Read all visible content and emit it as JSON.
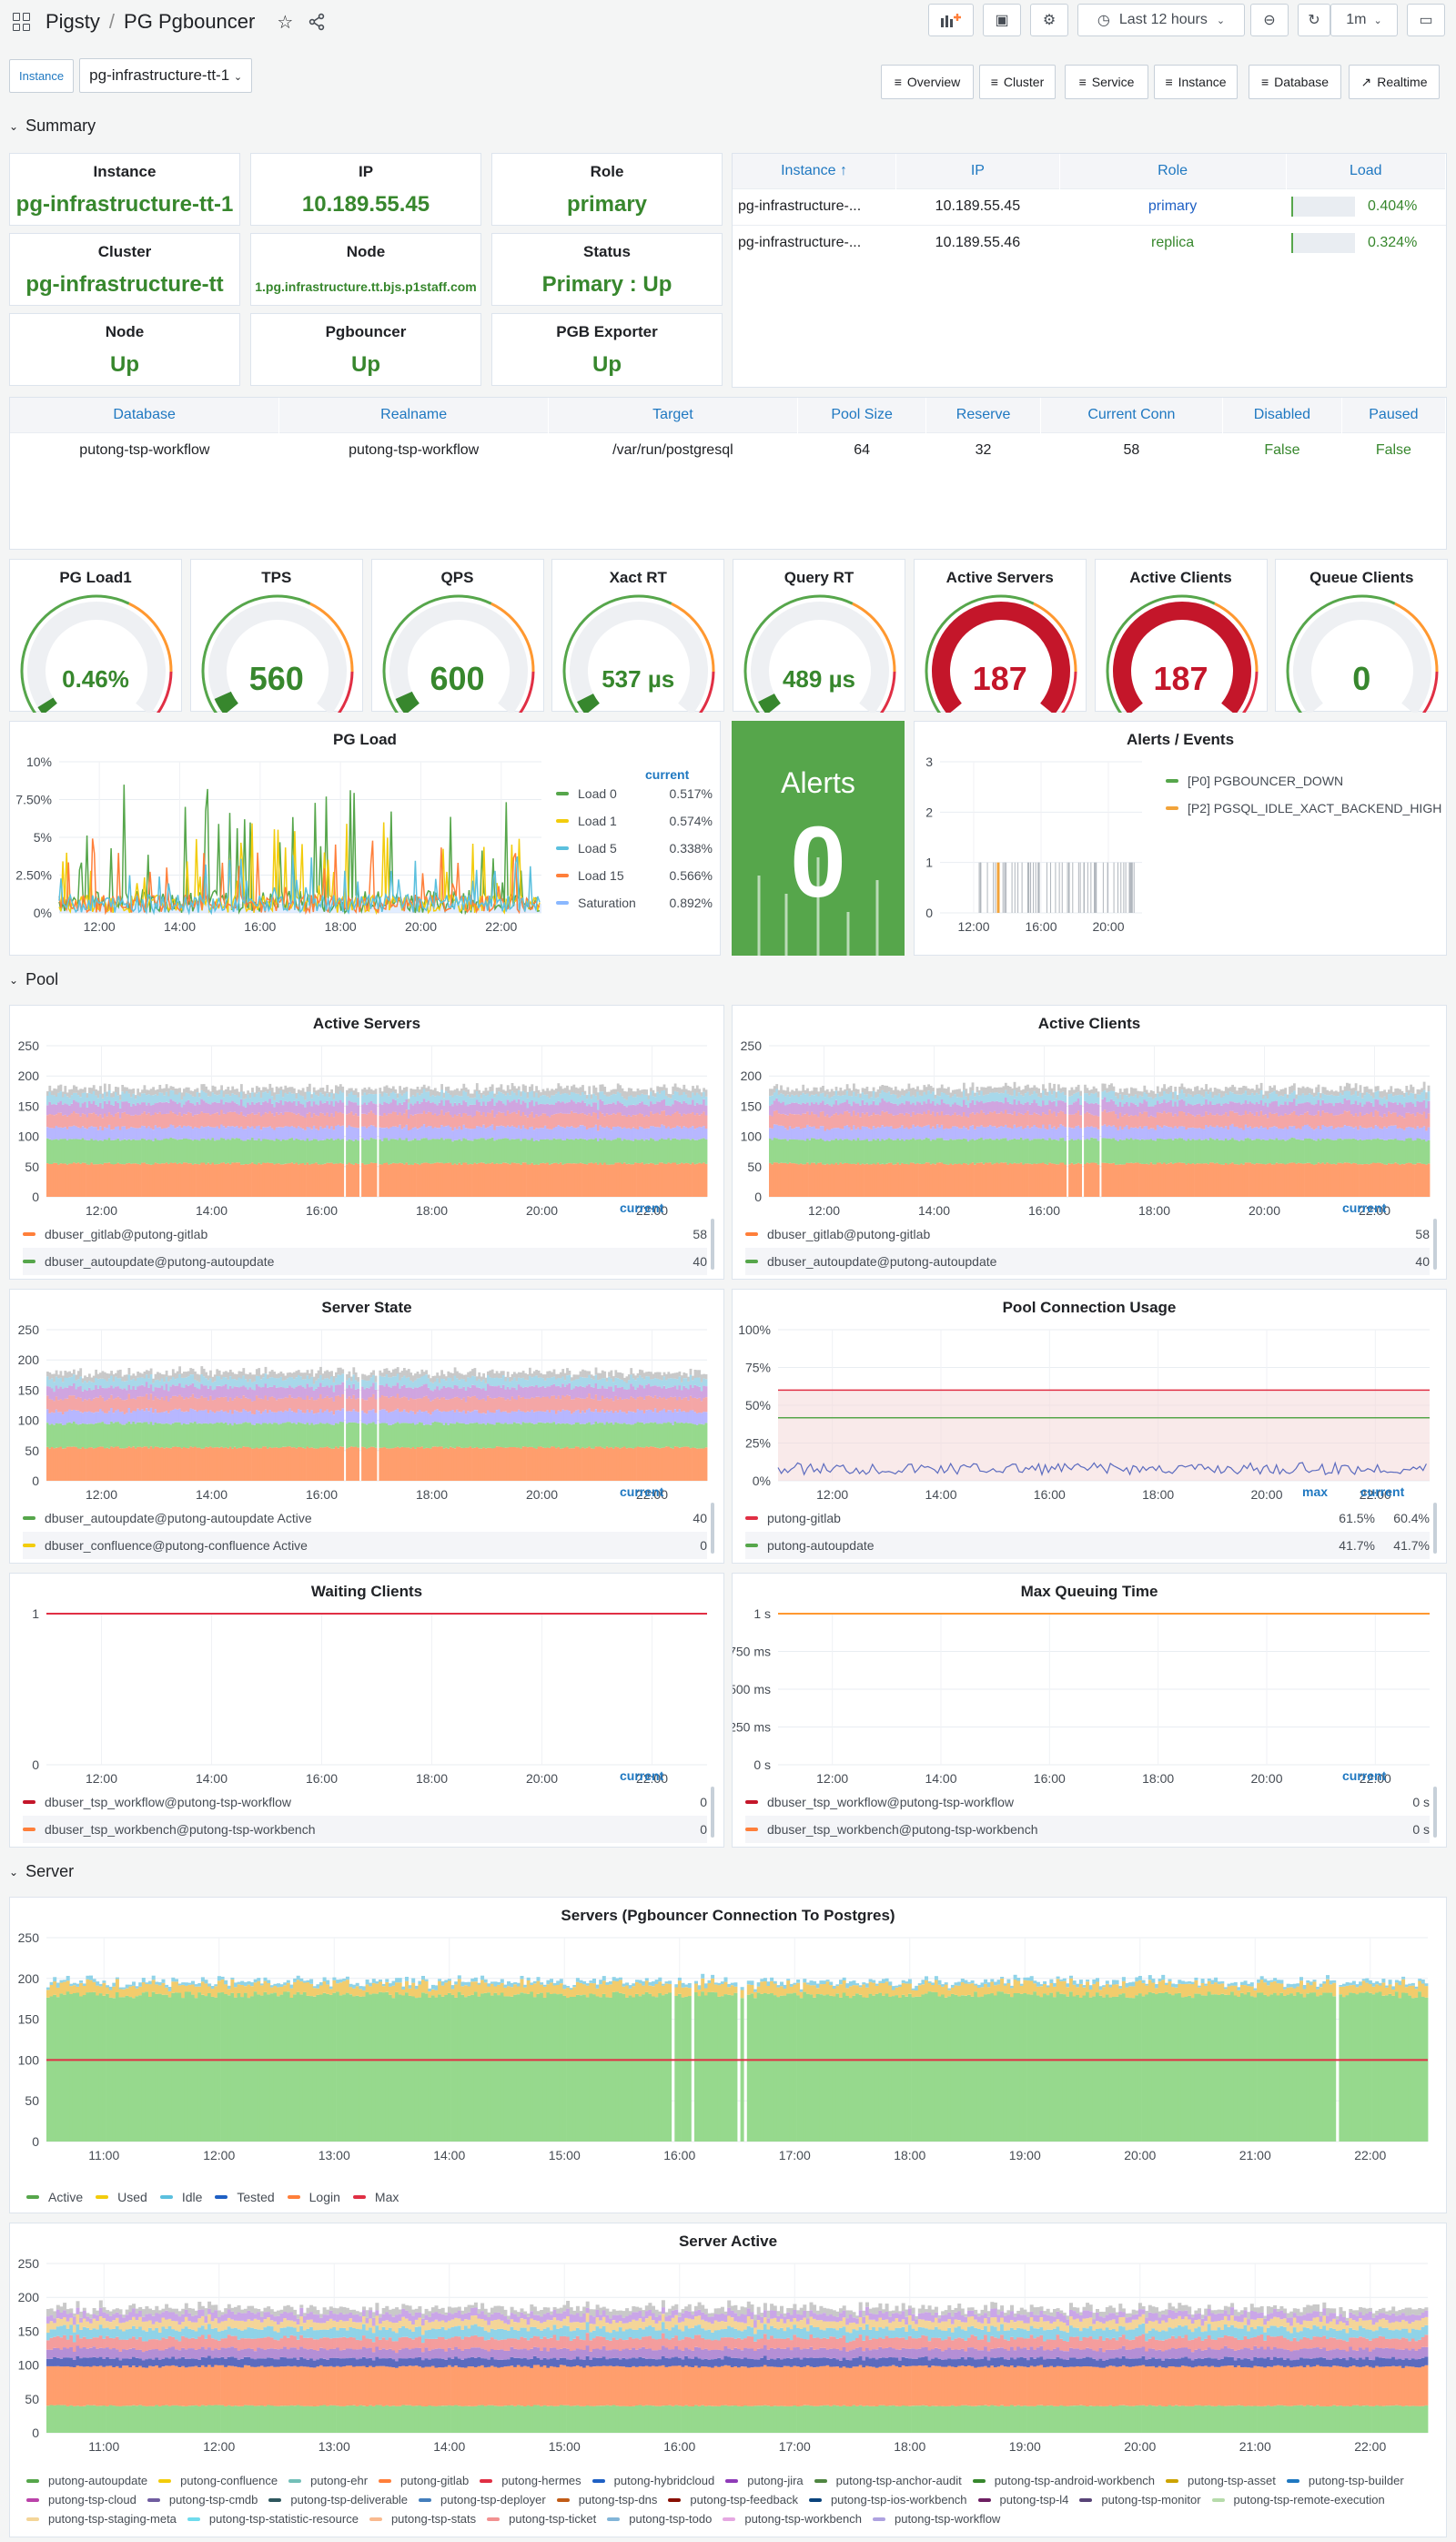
{
  "breadcrumb": {
    "root": "Pigsty",
    "sep": "/",
    "page": "PG Pgbouncer"
  },
  "timepicker": {
    "range": "Last 12 hours",
    "refresh": "1m"
  },
  "variables": {
    "label": "Instance",
    "value": "pg-infrastructure-tt-1"
  },
  "nav_links": [
    "Overview",
    "Cluster",
    "Service",
    "Instance",
    "Database",
    "Realtime"
  ],
  "rows": {
    "summary": "Summary",
    "pool": "Pool",
    "server": "Server"
  },
  "stats": [
    {
      "label": "Instance",
      "value": "pg-infrastructure-tt-1"
    },
    {
      "label": "IP",
      "value": "10.189.55.45"
    },
    {
      "label": "Role",
      "value": "primary"
    },
    {
      "label": "Cluster",
      "value": "pg-infrastructure-tt"
    },
    {
      "label": "Node",
      "value": "1.pg.infrastructure.tt.bjs.p1staff.com"
    },
    {
      "label": "Status",
      "value": "Primary : Up"
    },
    {
      "label": "Node",
      "value": "Up"
    },
    {
      "label": "Pgbouncer",
      "value": "Up"
    },
    {
      "label": "PGB Exporter",
      "value": "Up"
    }
  ],
  "instances_table": {
    "headers": [
      "Instance ↑",
      "IP",
      "Role",
      "Load"
    ],
    "rows": [
      [
        "pg-infrastructure-...",
        "10.189.55.45",
        "primary",
        "0.404%"
      ],
      [
        "pg-infrastructure-...",
        "10.189.55.46",
        "replica",
        "0.324%"
      ]
    ]
  },
  "db_table": {
    "headers": [
      "Database",
      "Realname",
      "Target",
      "Pool Size",
      "Reserve",
      "Current Conn",
      "Disabled",
      "Paused"
    ],
    "rows": [
      [
        "putong-tsp-workflow",
        "putong-tsp-workflow",
        "/var/run/postgresql",
        "64",
        "32",
        "58",
        "False",
        "False"
      ]
    ]
  },
  "gauges": [
    {
      "label": "PG Load1",
      "value": "0.46%",
      "pct": 0.005,
      "color": "#37872d"
    },
    {
      "label": "TPS",
      "value": "560",
      "pct": 0.06,
      "color": "#37872d"
    },
    {
      "label": "QPS",
      "value": "600",
      "pct": 0.06,
      "color": "#37872d"
    },
    {
      "label": "Xact RT",
      "value": "537 µs",
      "pct": 0.05,
      "color": "#37872d"
    },
    {
      "label": "Query RT",
      "value": "489 µs",
      "pct": 0.05,
      "color": "#37872d"
    },
    {
      "label": "Active Servers",
      "value": "187",
      "pct": 1,
      "color": "#c4162a"
    },
    {
      "label": "Active Clients",
      "value": "187",
      "pct": 1,
      "color": "#c4162a"
    },
    {
      "label": "Queue Clients",
      "value": "0",
      "pct": 0,
      "color": "#37872d"
    }
  ],
  "pg_load": {
    "title": "PG Load",
    "yticks": [
      "10%",
      "7.50%",
      "5%",
      "2.50%",
      "0%"
    ],
    "xticks": [
      "12:00",
      "14:00",
      "16:00",
      "18:00",
      "20:00",
      "22:00"
    ],
    "legend_header": "current",
    "legend": [
      {
        "name": "Load 0",
        "value": "0.517%",
        "color": "#56a64b"
      },
      {
        "name": "Load 1",
        "value": "0.574%",
        "color": "#f2cc0c"
      },
      {
        "name": "Load 5",
        "value": "0.338%",
        "color": "#5bc0de"
      },
      {
        "name": "Load 15",
        "value": "0.566%",
        "color": "#ff7f3a"
      },
      {
        "name": "Saturation",
        "value": "0.892%",
        "color": "#8ab8ff"
      }
    ]
  },
  "alerts": {
    "title": "Alerts",
    "value": "0"
  },
  "alerts_events": {
    "title": "Alerts / Events",
    "yticks": [
      "3",
      "2",
      "1",
      "0"
    ],
    "xticks": [
      "12:00",
      "16:00",
      "20:00"
    ],
    "legend": [
      "[P0] PGBOUNCER_DOWN",
      "[P2] PGSQL_IDLE_XACT_BACKEND_HIGH"
    ]
  },
  "pool_panels": [
    {
      "title": "Active Servers",
      "yticks": [
        "250",
        "200",
        "150",
        "100",
        "50",
        "0"
      ],
      "xticks": [
        "12:00",
        "14:00",
        "16:00",
        "18:00",
        "20:00",
        "22:00"
      ],
      "legend_header": "current",
      "legend": [
        {
          "name": "dbuser_gitlab@putong-gitlab",
          "value": "58",
          "color": "#ff7f3a"
        },
        {
          "name": "dbuser_autoupdate@putong-autoupdate",
          "value": "40",
          "color": "#56a64b"
        }
      ]
    },
    {
      "title": "Active Clients",
      "yticks": [
        "250",
        "200",
        "150",
        "100",
        "50",
        "0"
      ],
      "xticks": [
        "12:00",
        "14:00",
        "16:00",
        "18:00",
        "20:00",
        "22:00"
      ],
      "legend_header": "current",
      "legend": [
        {
          "name": "dbuser_gitlab@putong-gitlab",
          "value": "58",
          "color": "#ff7f3a"
        },
        {
          "name": "dbuser_autoupdate@putong-autoupdate",
          "value": "40",
          "color": "#56a64b"
        }
      ]
    },
    {
      "title": "Server State",
      "yticks": [
        "250",
        "200",
        "150",
        "100",
        "50",
        "0"
      ],
      "xticks": [
        "12:00",
        "14:00",
        "16:00",
        "18:00",
        "20:00",
        "22:00"
      ],
      "legend_header": "current",
      "legend": [
        {
          "name": "dbuser_autoupdate@putong-autoupdate Active",
          "value": "40",
          "color": "#56a64b"
        },
        {
          "name": "dbuser_confluence@putong-confluence Active",
          "value": "0",
          "color": "#f2cc0c"
        }
      ]
    },
    {
      "title": "Pool Connection Usage",
      "yticks": [
        "100%",
        "75%",
        "50%",
        "25%",
        "0%"
      ],
      "xticks": [
        "12:00",
        "14:00",
        "16:00",
        "18:00",
        "20:00",
        "22:00"
      ],
      "legend_header": "current",
      "legend_header2": "max",
      "legend": [
        {
          "name": "putong-gitlab",
          "max": "61.5%",
          "value": "60.4%",
          "color": "#e02f44"
        },
        {
          "name": "putong-autoupdate",
          "max": "41.7%",
          "value": "41.7%",
          "color": "#56a64b"
        }
      ]
    },
    {
      "title": "Waiting Clients",
      "yticks": [
        "1",
        "0"
      ],
      "xticks": [
        "12:00",
        "14:00",
        "16:00",
        "18:00",
        "20:00",
        "22:00"
      ],
      "legend_header": "current",
      "legend": [
        {
          "name": "dbuser_tsp_workflow@putong-tsp-workflow",
          "value": "0",
          "color": "#c4162a"
        },
        {
          "name": "dbuser_tsp_workbench@putong-tsp-workbench",
          "value": "0",
          "color": "#ff7f3a"
        }
      ]
    },
    {
      "title": "Max Queuing Time",
      "yticks": [
        "1 s",
        "750 ms",
        "500 ms",
        "250 ms",
        "0 s"
      ],
      "xticks": [
        "12:00",
        "14:00",
        "16:00",
        "18:00",
        "20:00",
        "22:00"
      ],
      "legend_header": "current",
      "legend": [
        {
          "name": "dbuser_tsp_workflow@putong-tsp-workflow",
          "value": "0 s",
          "color": "#c4162a"
        },
        {
          "name": "dbuser_tsp_workbench@putong-tsp-workbench",
          "value": "0 s",
          "color": "#ff7f3a"
        }
      ]
    }
  ],
  "servers_panel": {
    "title": "Servers (Pgbouncer Connection To Postgres)",
    "yticks": [
      "250",
      "200",
      "150",
      "100",
      "50",
      "0"
    ],
    "xticks": [
      "11:00",
      "12:00",
      "13:00",
      "14:00",
      "15:00",
      "16:00",
      "17:00",
      "18:00",
      "19:00",
      "20:00",
      "21:00",
      "22:00"
    ],
    "legend": [
      {
        "name": "Active",
        "color": "#56a64b"
      },
      {
        "name": "Used",
        "color": "#f2cc0c"
      },
      {
        "name": "Idle",
        "color": "#5bc0de"
      },
      {
        "name": "Tested",
        "color": "#1f60c4"
      },
      {
        "name": "Login",
        "color": "#ff7f3a"
      },
      {
        "name": "Max",
        "color": "#e02f44"
      }
    ]
  },
  "server_active": {
    "title": "Server Active",
    "yticks": [
      "250",
      "200",
      "150",
      "100",
      "50",
      "0"
    ],
    "xticks": [
      "11:00",
      "12:00",
      "13:00",
      "14:00",
      "15:00",
      "16:00",
      "17:00",
      "18:00",
      "19:00",
      "20:00",
      "21:00",
      "22:00"
    ],
    "legend": [
      {
        "name": "putong-autoupdate",
        "color": "#56a64b"
      },
      {
        "name": "putong-confluence",
        "color": "#f2cc0c"
      },
      {
        "name": "putong-ehr",
        "color": "#73bfb8"
      },
      {
        "name": "putong-gitlab",
        "color": "#ff7f3a"
      },
      {
        "name": "putong-hermes",
        "color": "#e02f44"
      },
      {
        "name": "putong-hybridcloud",
        "color": "#1f60c4"
      },
      {
        "name": "putong-jira",
        "color": "#8f3bb8"
      },
      {
        "name": "putong-tsp-anchor-audit",
        "color": "#508642"
      },
      {
        "name": "putong-tsp-android-workbench",
        "color": "#37872d"
      },
      {
        "name": "putong-tsp-asset",
        "color": "#cca300"
      },
      {
        "name": "putong-tsp-builder",
        "color": "#1f78c1"
      },
      {
        "name": "putong-tsp-cloud",
        "color": "#ba43a9"
      },
      {
        "name": "putong-tsp-cmdb",
        "color": "#705da0"
      },
      {
        "name": "putong-tsp-deliverable",
        "color": "#2f575e"
      },
      {
        "name": "putong-tsp-deployer",
        "color": "#447ebc"
      },
      {
        "name": "putong-tsp-dns",
        "color": "#c15c17"
      },
      {
        "name": "putong-tsp-feedback",
        "color": "#890f02"
      },
      {
        "name": "putong-tsp-ios-workbench",
        "color": "#0a437c"
      },
      {
        "name": "putong-tsp-l4",
        "color": "#6d1f62"
      },
      {
        "name": "putong-tsp-monitor",
        "color": "#584477"
      },
      {
        "name": "putong-tsp-remote-execution",
        "color": "#b7dbab"
      },
      {
        "name": "putong-tsp-staging-meta",
        "color": "#f4d598"
      },
      {
        "name": "putong-tsp-statistic-resource",
        "color": "#70dbed"
      },
      {
        "name": "putong-tsp-stats",
        "color": "#f9ba8f"
      },
      {
        "name": "putong-tsp-ticket",
        "color": "#f29191"
      },
      {
        "name": "putong-tsp-todo",
        "color": "#82b5d8"
      },
      {
        "name": "putong-tsp-workbench",
        "color": "#e5a8e2"
      },
      {
        "name": "putong-tsp-workflow",
        "color": "#aea2e0"
      }
    ]
  }
}
